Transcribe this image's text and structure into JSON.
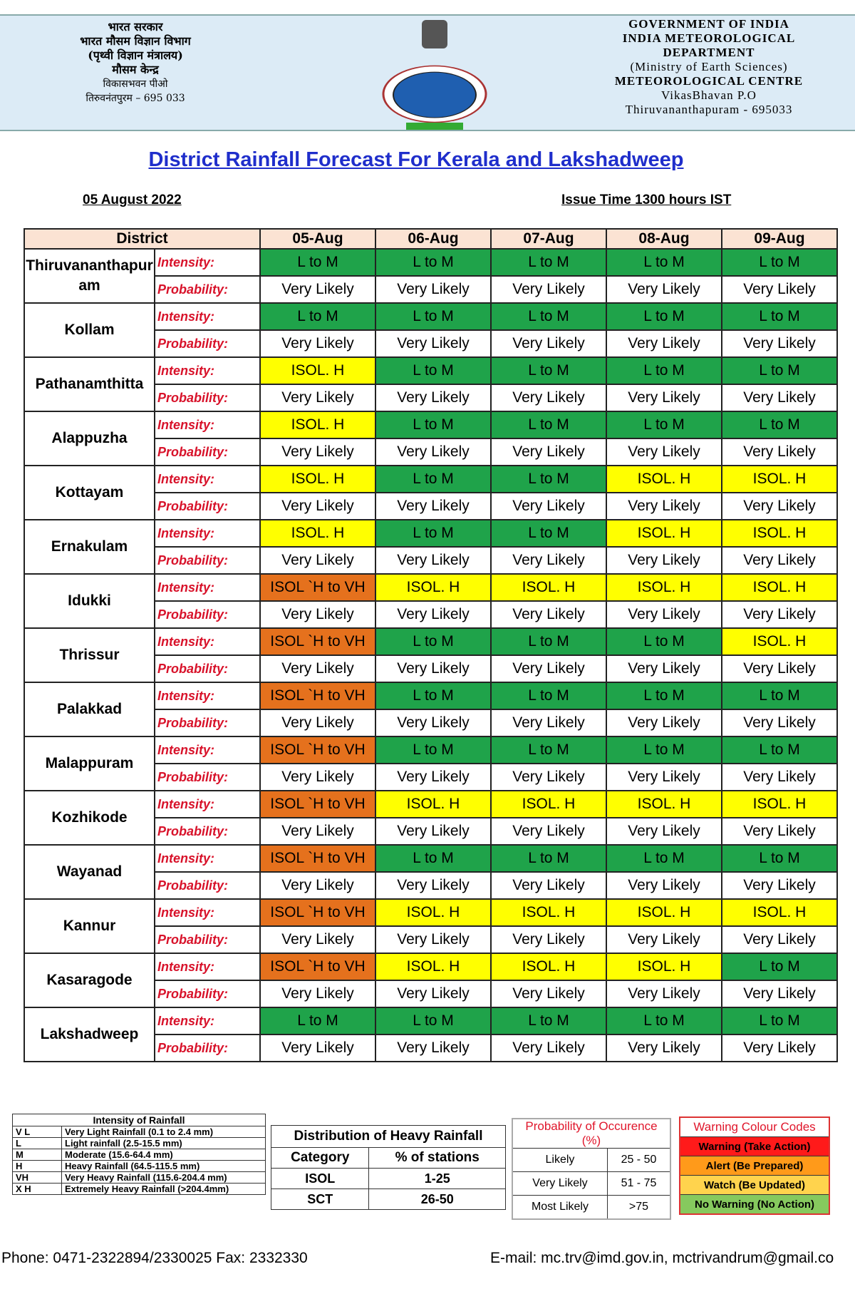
{
  "header": {
    "hindi": [
      "भारत सरकार",
      "भारत मौसम विज्ञान विभाग",
      "(पृथ्वी विज्ञान मंत्रालय)",
      "मौसम केन्द्र",
      "विकासभवन पीओ",
      "तिरुवनंतपुरम  –  695 033"
    ],
    "english": [
      "GOVERNMENT OF INDIA",
      "INDIA METEOROLOGICAL",
      "DEPARTMENT",
      "(Ministry of Earth Sciences)",
      "METEOROLOGICAL CENTRE",
      "VikasBhavan P.O",
      "Thiruvananthapuram - 695033"
    ]
  },
  "title": "District Rainfall Forecast For Kerala and Lakshadweep",
  "date": "05 August 2022",
  "issue_time": "Issue Time 1300 hours IST",
  "forecast_table": {
    "headers": [
      "District",
      "05-Aug",
      "06-Aug",
      "07-Aug",
      "08-Aug",
      "09-Aug"
    ],
    "intensity_label": "Intensity:",
    "probability_label": "Probability:",
    "intensity_colors": {
      "L to M": "#1fa34a",
      "ISOL. H": "#ffff00",
      "ISOL `H to VH": "#e5711d"
    },
    "rows": [
      {
        "district": "Thiruvananthapuram",
        "intensity": [
          "L to M",
          "L to M",
          "L to M",
          "L to M",
          "L to M"
        ],
        "probability": [
          "Very Likely",
          "Very Likely",
          "Very Likely",
          "Very Likely",
          "Very Likely"
        ]
      },
      {
        "district": "Kollam",
        "intensity": [
          "L to M",
          "L to M",
          "L to M",
          "L to M",
          "L to M"
        ],
        "probability": [
          "Very Likely",
          "Very Likely",
          "Very Likely",
          "Very Likely",
          "Very Likely"
        ]
      },
      {
        "district": "Pathanamthitta",
        "intensity": [
          "ISOL. H",
          "L to M",
          "L to M",
          "L to M",
          "L to M"
        ],
        "probability": [
          "Very Likely",
          "Very Likely",
          "Very Likely",
          "Very Likely",
          "Very Likely"
        ]
      },
      {
        "district": "Alappuzha",
        "intensity": [
          "ISOL. H",
          "L to M",
          "L to M",
          "L to M",
          "L to M"
        ],
        "probability": [
          "Very Likely",
          "Very Likely",
          "Very Likely",
          "Very Likely",
          "Very Likely"
        ]
      },
      {
        "district": "Kottayam",
        "intensity": [
          "ISOL. H",
          "L to M",
          "L to M",
          "ISOL. H",
          "ISOL. H"
        ],
        "probability": [
          "Very Likely",
          "Very Likely",
          "Very Likely",
          "Very Likely",
          "Very Likely"
        ]
      },
      {
        "district": "Ernakulam",
        "intensity": [
          "ISOL. H",
          "L to M",
          "L to M",
          "ISOL. H",
          "ISOL. H"
        ],
        "probability": [
          "Very Likely",
          "Very Likely",
          "Very Likely",
          "Very Likely",
          "Very Likely"
        ]
      },
      {
        "district": "Idukki",
        "intensity": [
          "ISOL `H to VH",
          "ISOL. H",
          "ISOL. H",
          "ISOL. H",
          "ISOL. H"
        ],
        "probability": [
          "Very Likely",
          "Very Likely",
          "Very Likely",
          "Very Likely",
          "Very Likely"
        ]
      },
      {
        "district": "Thrissur",
        "intensity": [
          "ISOL `H to VH",
          "L to M",
          "L to M",
          "L to M",
          "ISOL. H"
        ],
        "probability": [
          "Very Likely",
          "Very Likely",
          "Very Likely",
          "Very Likely",
          "Very Likely"
        ]
      },
      {
        "district": "Palakkad",
        "intensity": [
          "ISOL `H to VH",
          "L to M",
          "L to M",
          "L to M",
          "L to M"
        ],
        "probability": [
          "Very Likely",
          "Very Likely",
          "Very Likely",
          "Very Likely",
          "Very Likely"
        ]
      },
      {
        "district": "Malappuram",
        "intensity": [
          "ISOL `H to VH",
          "L to M",
          "L to M",
          "L to M",
          "L to M"
        ],
        "probability": [
          "Very Likely",
          "Very Likely",
          "Very Likely",
          "Very Likely",
          "Very Likely"
        ]
      },
      {
        "district": "Kozhikode",
        "intensity": [
          "ISOL `H to VH",
          "ISOL. H",
          "ISOL. H",
          "ISOL. H",
          "ISOL. H"
        ],
        "probability": [
          "Very Likely",
          "Very Likely",
          "Very Likely",
          "Very Likely",
          "Very Likely"
        ]
      },
      {
        "district": "Wayanad",
        "intensity": [
          "ISOL `H to VH",
          "L to M",
          "L to M",
          "L to M",
          "L to M"
        ],
        "probability": [
          "Very Likely",
          "Very Likely",
          "Very Likely",
          "Very Likely",
          "Very Likely"
        ]
      },
      {
        "district": "Kannur",
        "intensity": [
          "ISOL `H to VH",
          "ISOL. H",
          "ISOL. H",
          "ISOL. H",
          "ISOL. H"
        ],
        "probability": [
          "Very Likely",
          "Very Likely",
          "Very Likely",
          "Very Likely",
          "Very Likely"
        ]
      },
      {
        "district": "Kasaragode",
        "intensity": [
          "ISOL `H to VH",
          "ISOL. H",
          "ISOL. H",
          "ISOL. H",
          "L to M"
        ],
        "probability": [
          "Very Likely",
          "Very Likely",
          "Very Likely",
          "Very Likely",
          "Very Likely"
        ]
      },
      {
        "district": "Lakshadweep",
        "intensity": [
          "L to M",
          "L to M",
          "L to M",
          "L to M",
          "L to M"
        ],
        "probability": [
          "Very Likely",
          "Very Likely",
          "Very Likely",
          "Very Likely",
          "Very Likely"
        ]
      }
    ]
  },
  "intensity_legend": {
    "title": "Intensity of Rainfall",
    "rows": [
      [
        "V L",
        "Very Light Rainfall (0.1 to 2.4 mm)"
      ],
      [
        "L",
        "Light rainfall (2.5-15.5 mm)"
      ],
      [
        "M",
        "Moderate (15.6-64.4 mm)"
      ],
      [
        "H",
        "Heavy Rainfall (64.5-115.5 mm)"
      ],
      [
        "VH",
        "Very Heavy Rainfall (115.6-204.4 mm)"
      ],
      [
        "X H",
        "Extremely Heavy Rainfall (>204.4mm)"
      ]
    ]
  },
  "distribution_legend": {
    "title": "Distribution of Heavy Rainfall",
    "headers": [
      "Category",
      "% of stations"
    ],
    "rows": [
      [
        "ISOL",
        "1-25"
      ],
      [
        "SCT",
        "26-50"
      ]
    ]
  },
  "probability_legend": {
    "title": "Probability of Occurence (%)",
    "rows": [
      [
        "Likely",
        "25 - 50"
      ],
      [
        "Very Likely",
        "51 - 75"
      ],
      [
        "Most Likely",
        ">75"
      ]
    ]
  },
  "warning_legend": {
    "title": "Warning Colour Codes",
    "rows": [
      {
        "label": "Warning (Take Action)",
        "color": "#ff1a1a"
      },
      {
        "label": "Alert (Be Prepared)",
        "color": "#ff9a1a"
      },
      {
        "label": "Watch (Be Updated)",
        "color": "#ffd34d"
      },
      {
        "label": "No Warning (No Action)",
        "color": "#86c95e"
      }
    ]
  },
  "footer": {
    "phone": "Phone: 0471-2322894/2330025 Fax: 2332330",
    "email": "E-mail: mc.trv@imd.gov.in, mctrivandrum@gmail.co"
  }
}
